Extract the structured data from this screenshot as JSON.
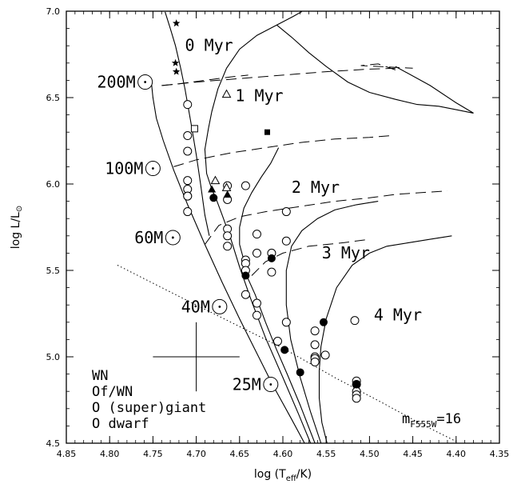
{
  "chart_data": {
    "type": "scatter",
    "xlabel": "log (T",
    "xlabel_sub": "eff",
    "xlabel_tail": "/K)",
    "ylabel": "log L/L",
    "ylabel_symbol": "⊙",
    "xlim": [
      4.85,
      4.35
    ],
    "ylim": [
      4.5,
      7.0
    ],
    "x_ticks": [
      "4.85",
      "4.80",
      "4.75",
      "4.70",
      "4.65",
      "4.60",
      "4.55",
      "4.50",
      "4.45",
      "4.40",
      "4.35"
    ],
    "y_ticks": [
      "4.5",
      "5.0",
      "5.5",
      "6.0",
      "6.5",
      "7.0"
    ],
    "x_tick_values": [
      4.85,
      4.8,
      4.75,
      4.7,
      4.65,
      4.6,
      4.55,
      4.5,
      4.45,
      4.4,
      4.35
    ],
    "y_tick_values": [
      4.5,
      5.0,
      5.5,
      6.0,
      6.5,
      7.0
    ],
    "mass_labels": [
      {
        "text": "200M",
        "x": 4.759,
        "y": 6.59
      },
      {
        "text": "100M",
        "x": 4.75,
        "y": 6.09
      },
      {
        "text": "60M",
        "x": 4.727,
        "y": 5.69
      },
      {
        "text": "40M",
        "x": 4.673,
        "y": 5.29
      },
      {
        "text": "25M",
        "x": 4.614,
        "y": 4.84
      }
    ],
    "isochrone_labels": [
      {
        "text": "0 Myr",
        "x": 4.713,
        "y": 6.77
      },
      {
        "text": "1 Myr",
        "x": 4.655,
        "y": 6.48
      },
      {
        "text": "2 Myr",
        "x": 4.59,
        "y": 5.95
      },
      {
        "text": "3 Myr",
        "x": 4.555,
        "y": 5.57
      },
      {
        "text": "4 Myr",
        "x": 4.495,
        "y": 5.21
      }
    ],
    "magnitude_label": {
      "text": "m",
      "sub": "F555W",
      "tail": "=16"
    },
    "legend": [
      "WN",
      "Of/WN",
      "O (super)giant",
      "O dwarf"
    ],
    "tracks": [
      [
        [
          4.736,
          6.996
        ],
        [
          4.73,
          6.9
        ],
        [
          4.724,
          6.8
        ],
        [
          4.718,
          6.67
        ],
        [
          4.713,
          6.55
        ],
        [
          4.706,
          6.35
        ],
        [
          4.7,
          6.17
        ],
        [
          4.695,
          6.0
        ],
        [
          4.69,
          5.82
        ],
        [
          4.685,
          5.7
        ]
      ],
      [
        [
          4.752,
          6.6
        ],
        [
          4.75,
          6.5
        ],
        [
          4.746,
          6.38
        ],
        [
          4.738,
          6.25
        ],
        [
          4.726,
          6.08
        ],
        [
          4.71,
          5.88
        ],
        [
          4.69,
          5.65
        ],
        [
          4.67,
          5.43
        ],
        [
          4.65,
          5.22
        ],
        [
          4.63,
          5.02
        ],
        [
          4.612,
          4.84
        ],
        [
          4.59,
          4.64
        ],
        [
          4.575,
          4.5
        ]
      ],
      [
        [
          4.688,
          6.06
        ],
        [
          4.69,
          6.2
        ],
        [
          4.686,
          6.32
        ],
        [
          4.682,
          6.42
        ],
        [
          4.675,
          6.55
        ],
        [
          4.665,
          6.67
        ],
        [
          4.65,
          6.78
        ],
        [
          4.63,
          6.86
        ],
        [
          4.607,
          6.92
        ],
        [
          4.588,
          6.97
        ],
        [
          4.578,
          6.998
        ]
      ],
      [
        [
          4.607,
          6.92
        ],
        [
          4.59,
          6.85
        ],
        [
          4.57,
          6.76
        ],
        [
          4.55,
          6.68
        ],
        [
          4.525,
          6.59
        ],
        [
          4.5,
          6.53
        ],
        [
          4.47,
          6.49
        ],
        [
          4.445,
          6.46
        ],
        [
          4.42,
          6.45
        ],
        [
          4.4,
          6.43
        ],
        [
          4.38,
          6.41
        ],
        [
          4.4,
          6.47
        ],
        [
          4.43,
          6.57
        ],
        [
          4.47,
          6.68
        ]
      ],
      [
        [
          4.688,
          6.06
        ],
        [
          4.682,
          5.97
        ],
        [
          4.676,
          5.9
        ],
        [
          4.67,
          5.82
        ],
        [
          4.66,
          5.68
        ],
        [
          4.65,
          5.52
        ],
        [
          4.636,
          5.32
        ],
        [
          4.62,
          5.11
        ],
        [
          4.6,
          4.88
        ],
        [
          4.582,
          4.67
        ],
        [
          4.568,
          4.5
        ]
      ],
      [
        [
          4.644,
          5.54
        ],
        [
          4.65,
          5.65
        ],
        [
          4.65,
          5.75
        ],
        [
          4.645,
          5.86
        ],
        [
          4.636,
          5.95
        ],
        [
          4.625,
          6.04
        ],
        [
          4.614,
          6.12
        ],
        [
          4.605,
          6.21
        ]
      ],
      [
        [
          4.644,
          5.54
        ],
        [
          4.64,
          5.45
        ],
        [
          4.632,
          5.36
        ],
        [
          4.62,
          5.2
        ],
        [
          4.608,
          5.05
        ],
        [
          4.595,
          4.9
        ],
        [
          4.58,
          4.72
        ],
        [
          4.563,
          4.5
        ]
      ],
      [
        [
          4.556,
          4.5
        ],
        [
          4.568,
          4.68
        ],
        [
          4.58,
          4.88
        ],
        [
          4.591,
          5.1
        ],
        [
          4.596,
          5.3
        ],
        [
          4.596,
          5.5
        ],
        [
          4.59,
          5.64
        ],
        [
          4.578,
          5.73
        ],
        [
          4.56,
          5.8
        ],
        [
          4.54,
          5.85
        ],
        [
          4.515,
          5.88
        ],
        [
          4.49,
          5.9
        ]
      ],
      [
        [
          4.549,
          4.5
        ],
        [
          4.555,
          4.62
        ],
        [
          4.558,
          4.76
        ],
        [
          4.558,
          4.92
        ],
        [
          4.556,
          5.06
        ],
        [
          4.55,
          5.22
        ],
        [
          4.538,
          5.4
        ],
        [
          4.52,
          5.53
        ],
        [
          4.5,
          5.6
        ],
        [
          4.48,
          5.64
        ],
        [
          4.455,
          5.66
        ],
        [
          4.43,
          5.68
        ],
        [
          4.405,
          5.7
        ]
      ]
    ],
    "isochrones": [
      [
        [
          4.739,
          6.57
        ],
        [
          4.7,
          6.59
        ],
        [
          4.65,
          6.61
        ],
        [
          4.6,
          6.63
        ],
        [
          4.55,
          6.65
        ],
        [
          4.5,
          6.665
        ],
        [
          4.47,
          6.67
        ]
      ],
      [
        [
          4.74,
          6.57
        ],
        [
          4.72,
          6.58
        ],
        [
          4.69,
          6.6
        ],
        [
          4.66,
          6.62
        ],
        [
          4.64,
          6.63
        ]
      ],
      [
        [
          4.47,
          6.66
        ],
        [
          4.49,
          6.695
        ],
        [
          4.51,
          6.685
        ],
        [
          4.45,
          6.67
        ]
      ],
      [
        [
          4.726,
          6.1
        ],
        [
          4.7,
          6.14
        ],
        [
          4.66,
          6.18
        ],
        [
          4.62,
          6.21
        ],
        [
          4.58,
          6.24
        ],
        [
          4.54,
          6.26
        ],
        [
          4.5,
          6.27
        ],
        [
          4.475,
          6.28
        ]
      ],
      [
        [
          4.69,
          5.65
        ],
        [
          4.674,
          5.76
        ],
        [
          4.65,
          5.81
        ],
        [
          4.62,
          5.84
        ],
        [
          4.58,
          5.87
        ],
        [
          4.54,
          5.9
        ],
        [
          4.5,
          5.92
        ],
        [
          4.47,
          5.94
        ],
        [
          4.41,
          5.96
        ]
      ],
      [
        [
          4.636,
          5.47
        ],
        [
          4.62,
          5.55
        ],
        [
          4.6,
          5.6
        ],
        [
          4.57,
          5.64
        ],
        [
          4.53,
          5.66
        ],
        [
          4.5,
          5.68
        ]
      ]
    ],
    "magnitude_limit_line": [
      [
        4.791,
        5.53
      ],
      [
        4.72,
        5.35
      ],
      [
        4.66,
        5.2
      ],
      [
        4.6,
        5.05
      ],
      [
        4.54,
        4.88
      ],
      [
        4.48,
        4.72
      ],
      [
        4.44,
        4.61
      ],
      [
        4.4,
        4.51
      ]
    ],
    "series": [
      {
        "marker": "open-circle",
        "points": [
          [
            4.71,
            6.46
          ],
          [
            4.71,
            6.28
          ],
          [
            4.71,
            6.19
          ],
          [
            4.71,
            6.02
          ],
          [
            4.71,
            5.97
          ],
          [
            4.71,
            5.93
          ],
          [
            4.71,
            5.93
          ],
          [
            4.71,
            5.84
          ],
          [
            4.664,
            5.99
          ],
          [
            4.664,
            5.91
          ],
          [
            4.643,
            5.99
          ],
          [
            4.664,
            5.74
          ],
          [
            4.664,
            5.7
          ],
          [
            4.664,
            5.64
          ],
          [
            4.63,
            5.71
          ],
          [
            4.613,
            5.6
          ],
          [
            4.643,
            5.56
          ],
          [
            4.643,
            5.54
          ],
          [
            4.643,
            5.5
          ],
          [
            4.63,
            5.6
          ],
          [
            4.613,
            5.49
          ],
          [
            4.643,
            5.36
          ],
          [
            4.63,
            5.31
          ],
          [
            4.63,
            5.24
          ],
          [
            4.596,
            5.84
          ],
          [
            4.596,
            5.67
          ],
          [
            4.596,
            5.2
          ],
          [
            4.606,
            5.09
          ],
          [
            4.563,
            5.15
          ],
          [
            4.563,
            5.07
          ],
          [
            4.563,
            5.0
          ],
          [
            4.563,
            4.99
          ],
          [
            4.563,
            4.97
          ],
          [
            4.551,
            5.01
          ],
          [
            4.517,
            5.21
          ],
          [
            4.515,
            4.86
          ],
          [
            4.515,
            4.84
          ],
          [
            4.515,
            4.8
          ],
          [
            4.515,
            4.78
          ],
          [
            4.515,
            4.76
          ]
        ]
      },
      {
        "marker": "filled-circle",
        "points": [
          [
            4.68,
            5.92
          ],
          [
            4.613,
            5.57
          ],
          [
            4.643,
            5.47
          ],
          [
            4.598,
            5.04
          ],
          [
            4.58,
            4.91
          ],
          [
            4.553,
            5.2
          ],
          [
            4.515,
            4.84
          ]
        ]
      },
      {
        "marker": "open-triangle",
        "points": [
          [
            4.665,
            6.52
          ],
          [
            4.678,
            6.02
          ],
          [
            4.665,
            5.98
          ]
        ]
      },
      {
        "marker": "filled-triangle",
        "points": [
          [
            4.682,
            5.97
          ],
          [
            4.664,
            5.94
          ]
        ]
      },
      {
        "marker": "open-square",
        "points": [
          [
            4.702,
            6.32
          ]
        ]
      },
      {
        "marker": "filled-square",
        "points": [
          [
            4.618,
            6.3
          ]
        ]
      },
      {
        "marker": "star",
        "points": [
          [
            4.723,
            6.93
          ],
          [
            4.724,
            6.7
          ],
          [
            4.723,
            6.65
          ]
        ]
      }
    ],
    "error_bar": {
      "x": 4.7,
      "y": 5.0,
      "dx": 0.05,
      "dy": 0.2
    }
  }
}
